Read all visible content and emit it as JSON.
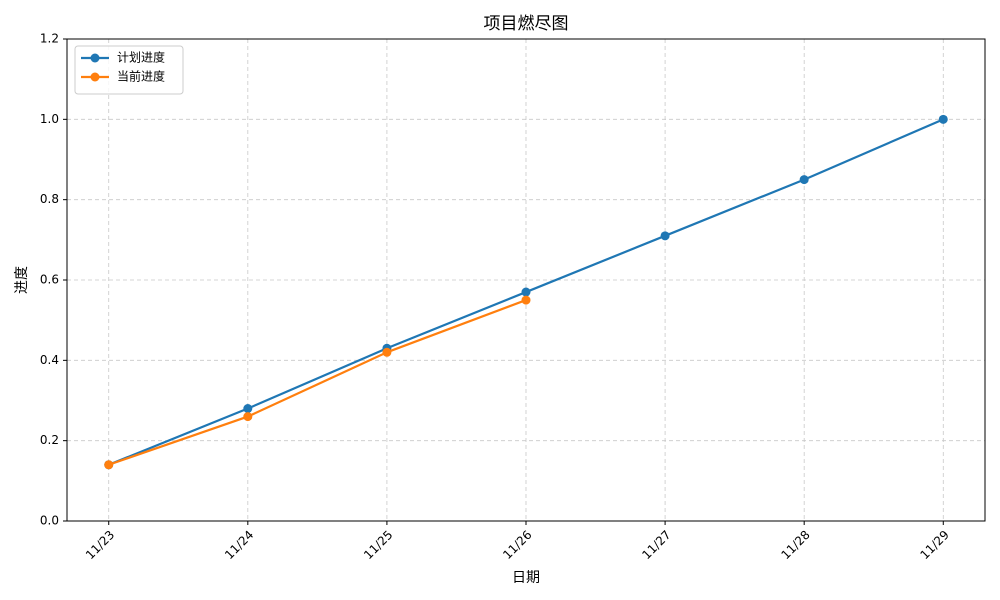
{
  "chart_data": {
    "type": "line",
    "title": "项目燃尽图",
    "x_label": "日期",
    "y_label": "进度",
    "categories": [
      "11/23",
      "11/24",
      "11/25",
      "11/26",
      "11/27",
      "11/28",
      "11/29"
    ],
    "series": [
      {
        "name": "计划进度",
        "color": "#1f77b4",
        "values": [
          0.14,
          0.28,
          0.43,
          0.57,
          0.71,
          0.85,
          1.0
        ]
      },
      {
        "name": "当前进度",
        "color": "#ff7f0e",
        "values": [
          0.14,
          0.26,
          0.42,
          0.55,
          null,
          null,
          null
        ]
      }
    ],
    "ylim": [
      0,
      1.2
    ],
    "yticks": [
      {
        "value": 0,
        "label": "0.0"
      },
      0.2,
      0.4,
      0.6,
      0.8,
      {
        "value": 1.0,
        "label": "1.0"
      },
      1.2
    ],
    "grid": true,
    "legend": "upper left"
  }
}
